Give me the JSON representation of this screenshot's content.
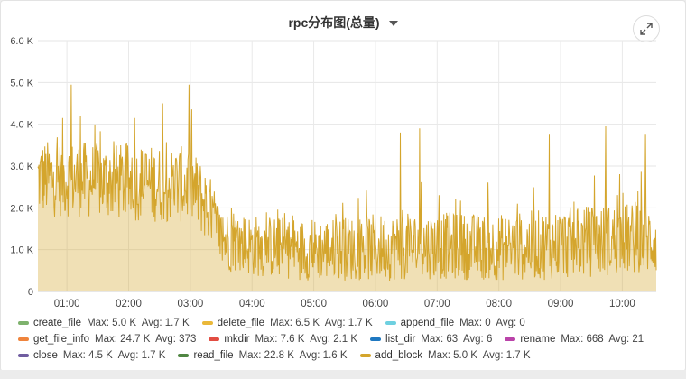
{
  "panel": {
    "title": "rpc分布图(总量)",
    "expand_icon": "expand-arrows-icon",
    "dropdown_icon": "caret-down-icon"
  },
  "chart_data": {
    "type": "area",
    "title": "rpc分布图(总量)",
    "xlabel": "",
    "ylabel": "",
    "x_ticks": [
      "01:00",
      "02:00",
      "03:00",
      "04:00",
      "05:00",
      "06:00",
      "07:00",
      "08:00",
      "09:00",
      "10:00"
    ],
    "y_ticks": [
      "0",
      "1.0 K",
      "2.0 K",
      "3.0 K",
      "4.0 K",
      "5.0 K",
      "6.0 K"
    ],
    "ylim": [
      0,
      6000
    ],
    "x_range_hours": [
      0.53,
      10.55
    ],
    "grid": true,
    "legend_placement": "bottom",
    "series": [
      {
        "name": "create_file",
        "color": "#7eb26d",
        "max": "5.0 K",
        "avg": "1.7 K",
        "visible": false
      },
      {
        "name": "delete_file",
        "color": "#eab839",
        "max": "6.5 K",
        "avg": "1.7 K",
        "visible": false
      },
      {
        "name": "append_file",
        "color": "#6ed0e0",
        "max": "0",
        "avg": "0",
        "visible": false
      },
      {
        "name": "get_file_info",
        "color": "#ef843c",
        "max": "24.7 K",
        "avg": "373",
        "visible": false
      },
      {
        "name": "mkdir",
        "color": "#e24d42",
        "max": "7.6 K",
        "avg": "2.1 K",
        "visible": false
      },
      {
        "name": "list_dir",
        "color": "#1f78c1",
        "max": "63",
        "avg": "6",
        "visible": false
      },
      {
        "name": "rename",
        "color": "#ba43a9",
        "max": "668",
        "avg": "21",
        "visible": false
      },
      {
        "name": "close",
        "color": "#705da0",
        "max": "4.5 K",
        "avg": "1.7 K",
        "visible": false
      },
      {
        "name": "read_file",
        "color": "#508642",
        "max": "22.8 K",
        "avg": "1.6 K",
        "visible": false
      },
      {
        "name": "add_block",
        "color": "#d4a52c",
        "max": "5.0 K",
        "avg": "1.7 K",
        "visible": true,
        "profile": {
          "times": [
            0.53,
            1.0,
            2.0,
            3.0,
            3.3,
            3.5,
            4.0,
            5.0,
            6.0,
            7.0,
            8.0,
            9.0,
            10.0,
            10.55
          ],
          "baseline": [
            2700,
            2700,
            2600,
            2550,
            2000,
            1250,
            1100,
            1000,
            1050,
            1100,
            1050,
            1150,
            1250,
            1250
          ],
          "band": [
            800,
            800,
            800,
            800,
            750,
            650,
            650,
            650,
            700,
            700,
            700,
            750,
            750,
            750
          ]
        },
        "peaks": [
          {
            "x": 1.07,
            "y": 4950
          },
          {
            "x": 1.22,
            "y": 4200
          },
          {
            "x": 2.55,
            "y": 4500
          },
          {
            "x": 2.98,
            "y": 4950
          },
          {
            "x": 6.4,
            "y": 3800
          },
          {
            "x": 6.72,
            "y": 3900
          },
          {
            "x": 8.82,
            "y": 3750
          },
          {
            "x": 9.73,
            "y": 3950
          },
          {
            "x": 10.38,
            "y": 3750
          },
          {
            "x": 0.93,
            "y": 4150
          }
        ]
      }
    ]
  },
  "legend": {
    "rows": [
      [
        0,
        1,
        2
      ],
      [
        3,
        4,
        5,
        6
      ],
      [
        7,
        8,
        9
      ]
    ],
    "max_label": "Max:",
    "avg_label": "Avg:"
  }
}
